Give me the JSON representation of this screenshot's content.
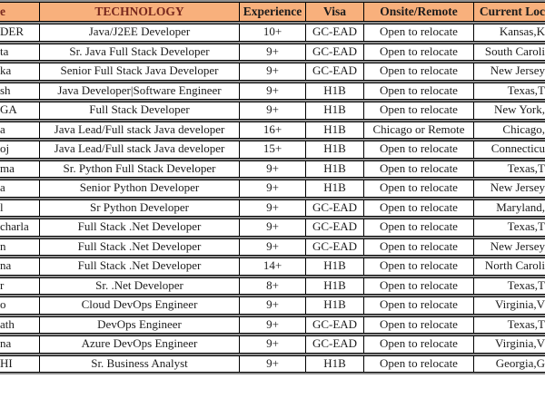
{
  "table": {
    "column_keys": [
      "name",
      "technology",
      "experience",
      "visa",
      "onsite-remote",
      "current-location"
    ],
    "columns": [
      {
        "label": "e",
        "color": "#77281e"
      },
      {
        "label": "TECHNOLOGY",
        "color": "#77281e"
      },
      {
        "label": "Experience",
        "color": "#1b1b1b"
      },
      {
        "label": "Visa",
        "color": "#1b1b1b"
      },
      {
        "label": "Onsite/Remote",
        "color": "#1b1b1b"
      },
      {
        "label": "Current Loc",
        "color": "#1b1b1b"
      }
    ],
    "rows": [
      [
        "DER",
        "Java/J2EE Developer",
        "10+",
        "GC-EAD",
        "Open to relocate",
        "Kansas,K"
      ],
      [
        "ta",
        "Sr. Java Full Stack Developer",
        "9+",
        "GC-EAD",
        "Open to relocate",
        "South Caroli"
      ],
      [
        "ka",
        "Senior Full Stack Java Developer",
        "9+",
        "GC-EAD",
        "Open to relocate",
        "New Jersey"
      ],
      [
        "sh",
        "Java Developer|Software Engineer",
        "9+",
        "H1B",
        "Open to relocate",
        "Texas,T"
      ],
      [
        "GA",
        "Full Stack Developer",
        "9+",
        "H1B",
        "Open to relocate",
        "New York,"
      ],
      [
        "a",
        "Java Lead/Full stack Java developer",
        "16+",
        "H1B",
        "Chicago or Remote",
        "Chicago,"
      ],
      [
        "oj",
        "Java Lead/Full stack Java developer",
        "15+",
        "H1B",
        "Open to relocate",
        "Connecticu"
      ],
      [
        "ma",
        "Sr. Python Full Stack Developer",
        "9+",
        "H1B",
        "Open to relocate",
        "Texas,T"
      ],
      [
        "a",
        "Senior Python Developer",
        "9+",
        "H1B",
        "Open to relocate",
        "New Jersey"
      ],
      [
        "l",
        "Sr Python Developer",
        "9+",
        "GC-EAD",
        "Open to relocate",
        "Maryland,"
      ],
      [
        "charla",
        "Full Stack .Net Developer",
        "9+",
        "GC-EAD",
        "Open to relocate",
        "Texas,T"
      ],
      [
        "n",
        "Full Stack .Net Developer",
        "9+",
        "GC-EAD",
        "Open to relocate",
        "New Jersey"
      ],
      [
        "na",
        "Full Stack .Net Developer",
        "14+",
        "H1B",
        "Open to relocate",
        "North Caroli"
      ],
      [
        "r",
        "Sr. .Net Developer",
        "8+",
        "H1B",
        "Open to relocate",
        "Texas,T"
      ],
      [
        "o",
        "Cloud DevOps Engineer",
        "9+",
        "H1B",
        "Open to relocate",
        "Virginia,V"
      ],
      [
        "ath",
        "DevOps Engineer",
        "9+",
        "GC-EAD",
        "Open to relocate",
        "Texas,T"
      ],
      [
        "na",
        "Azure DevOps Engineer",
        "9+",
        "GC-EAD",
        "Open to relocate",
        "Virginia,V"
      ],
      [
        "HI",
        "Sr. Business Analyst",
        "9+",
        "H1B",
        "Open to relocate",
        "Georgia,G"
      ]
    ]
  },
  "colors": {
    "header_bg": "#f8b07c",
    "header_text": "#1b1b1b",
    "header_accent_text": "#77281e",
    "cell_text": "#1c1c1c",
    "border": "#000000",
    "row_separator": "#8f8f8f",
    "row_bg": "#ffffff"
  }
}
